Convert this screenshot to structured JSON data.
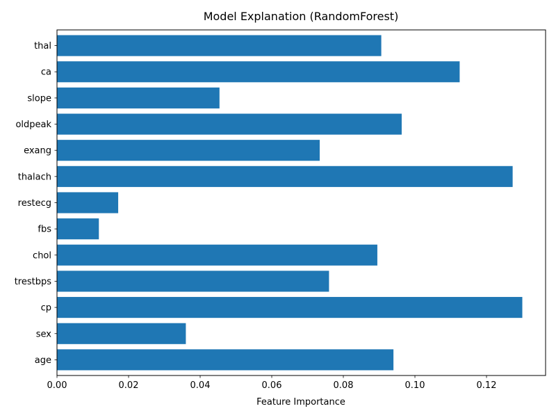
{
  "chart_data": {
    "type": "bar",
    "orientation": "horizontal",
    "title": "Model Explanation (RandomForest)",
    "xlabel": "Feature Importance",
    "ylabel": "",
    "categories": [
      "age",
      "sex",
      "cp",
      "trestbps",
      "chol",
      "fbs",
      "restecg",
      "thalach",
      "exang",
      "oldpeak",
      "slope",
      "ca",
      "thal"
    ],
    "values": [
      0.094,
      0.036,
      0.13,
      0.076,
      0.0895,
      0.0117,
      0.0171,
      0.1273,
      0.0734,
      0.0963,
      0.0454,
      0.1125,
      0.0906
    ],
    "xlim": [
      0.0,
      0.1365
    ],
    "xticks": [
      0.0,
      0.02,
      0.04,
      0.06,
      0.08,
      0.1,
      0.12
    ],
    "xtick_labels": [
      "0.00",
      "0.02",
      "0.04",
      "0.06",
      "0.08",
      "0.10",
      "0.12"
    ],
    "grid": false,
    "bar_color": "#1f77b4"
  }
}
